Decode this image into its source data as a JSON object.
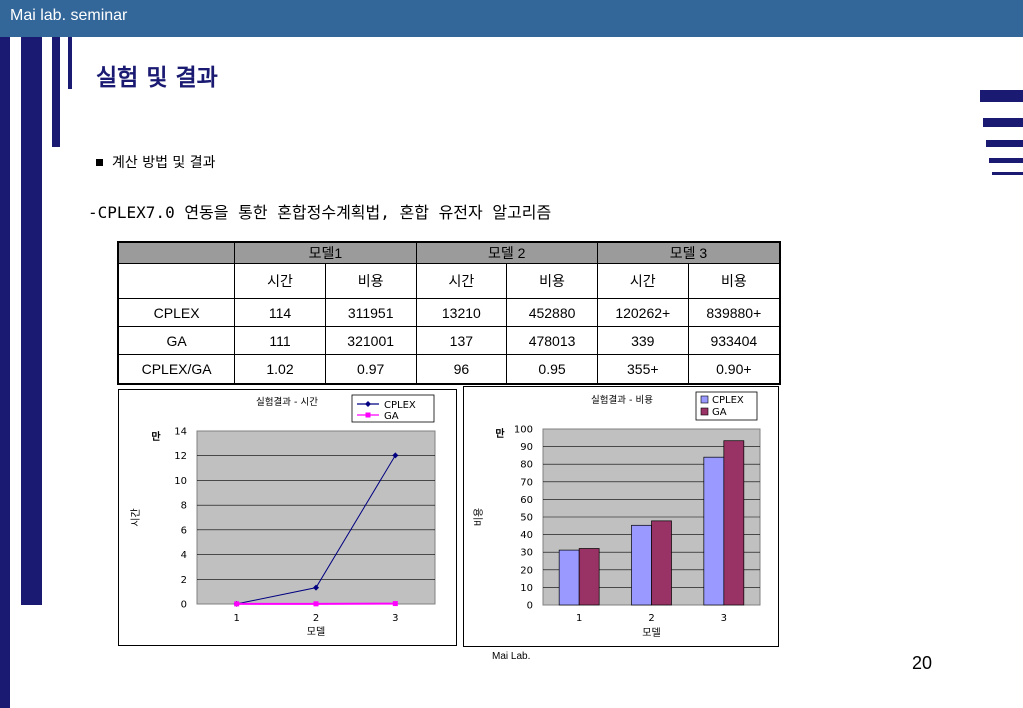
{
  "header": {
    "label": "Mai lab. seminar"
  },
  "slide": {
    "title": "실험 및 결과",
    "bullet": "계산 방법 및 결과",
    "subtitle": "-CPLEX7.0 연동을 통한 혼합정수계획법, 혼합 유전자 알고리즘"
  },
  "colors": {
    "header_bar": "#336699",
    "accent": "#1a1a73",
    "table_header": "#9b9b9b",
    "plot_area": "#c0c0c0",
    "line_cplex": "#000080",
    "line_ga": "#ff00ff",
    "bar_cplex": "#9999ff",
    "bar_ga": "#993366"
  },
  "table": {
    "group_headers": [
      "모델1",
      "모델 2",
      "모델 3"
    ],
    "sub_headers": [
      "시간",
      "비용",
      "시간",
      "비용",
      "시간",
      "비용"
    ],
    "rows": [
      {
        "label": "CPLEX",
        "cells": [
          "114",
          "311951",
          "13210",
          "452880",
          "120262+",
          "839880+"
        ]
      },
      {
        "label": "GA",
        "cells": [
          "111",
          "321001",
          "137",
          "478013",
          "339",
          "933404"
        ]
      },
      {
        "label": "CPLEX/GA",
        "cells": [
          "1.02",
          "0.97",
          "96",
          "0.95",
          "355+",
          "0.90+"
        ]
      }
    ]
  },
  "chart_data": [
    {
      "type": "line",
      "title": "실험결과 - 시간",
      "x": [
        1,
        2,
        3
      ],
      "xlabel": "모델",
      "ylabel": "시간",
      "unit_label": "만",
      "ylim": [
        0,
        14
      ],
      "yticks": [
        0,
        2,
        4,
        6,
        8,
        10,
        12,
        14
      ],
      "grid": true,
      "legend": "top-right",
      "series": [
        {
          "name": "CPLEX",
          "values": [
            0.0114,
            1.321,
            12.0262
          ]
        },
        {
          "name": "GA",
          "values": [
            0.0111,
            0.0137,
            0.0339
          ]
        }
      ]
    },
    {
      "type": "bar",
      "title": "실험결과 - 비용",
      "categories": [
        "1",
        "2",
        "3"
      ],
      "xlabel": "모델",
      "ylabel": "비용",
      "unit_label": "만",
      "ylim": [
        0,
        100
      ],
      "yticks": [
        0,
        10,
        20,
        30,
        40,
        50,
        60,
        70,
        80,
        90,
        100
      ],
      "grid": true,
      "legend": "top-right",
      "series": [
        {
          "name": "CPLEX",
          "values": [
            31.1951,
            45.288,
            83.988
          ]
        },
        {
          "name": "GA",
          "values": [
            32.1001,
            47.8013,
            93.3404
          ]
        }
      ]
    }
  ],
  "footer": {
    "lab": "Mai Lab.",
    "page": "20"
  }
}
